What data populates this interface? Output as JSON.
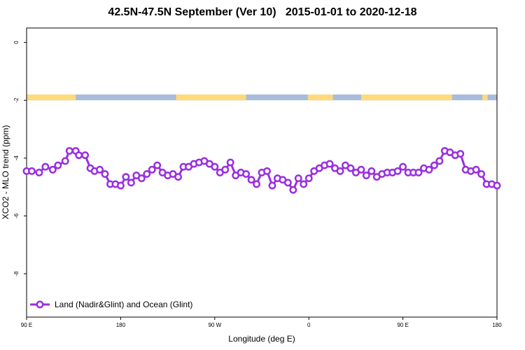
{
  "chart_data": {
    "type": "line",
    "title": "42.5N-47.5N September (Ver 10)   2015-01-01 to 2020-12-18",
    "xlabel": "Longitude (deg E)",
    "ylabel": "XCO2 - MLO trend (ppm)",
    "x_ticks": [
      {
        "value": 90,
        "label": "90 E"
      },
      {
        "value": 180,
        "label": "180"
      },
      {
        "value": 270,
        "label": "90 W"
      },
      {
        "value": 360,
        "label": "0"
      },
      {
        "value": 450,
        "label": "90 E"
      },
      {
        "value": 540,
        "label": "180"
      }
    ],
    "y_ticks": [
      0,
      -2,
      -4,
      -6,
      -8
    ],
    "xlim": [
      90,
      540
    ],
    "ylim": [
      -9.5,
      0.5
    ],
    "grid": false,
    "legend_position": "bottom-left",
    "land_ocean_bar": {
      "y_range": [
        -2.0,
        -1.8
      ],
      "land_color": "#FFD97A",
      "ocean_color": "#A7BCDA",
      "land_segments": [
        [
          90,
          137
        ],
        [
          233,
          300
        ],
        [
          359,
          383
        ],
        [
          410,
          497
        ],
        [
          526,
          531
        ]
      ]
    },
    "series": [
      {
        "name": "Land (Nadir&Glint) and Ocean (Glint)",
        "color": "#9A2FE0",
        "x": [
          90,
          95,
          102,
          108,
          115,
          120,
          127,
          131,
          137,
          140,
          146,
          151,
          155,
          160,
          165,
          170,
          175,
          180,
          185,
          190,
          195,
          200,
          205,
          210,
          215,
          220,
          225,
          230,
          235,
          240,
          245,
          250,
          255,
          260,
          265,
          270,
          275,
          280,
          285,
          290,
          295,
          300,
          305,
          310,
          315,
          320,
          325,
          330,
          335,
          340,
          345,
          350,
          355,
          360,
          365,
          370,
          375,
          380,
          385,
          390,
          395,
          400,
          405,
          410,
          415,
          420,
          425,
          430,
          435,
          440,
          445,
          450,
          455,
          460,
          465,
          470,
          475,
          480,
          485,
          490,
          495,
          500,
          505,
          510,
          515,
          520,
          525,
          530,
          535,
          540
        ],
        "y": [
          -4.45,
          -4.45,
          -4.5,
          -4.3,
          -4.4,
          -4.25,
          -4.1,
          -3.75,
          -3.75,
          -3.9,
          -3.9,
          -4.35,
          -4.45,
          -4.4,
          -4.55,
          -4.9,
          -4.9,
          -4.95,
          -4.65,
          -4.85,
          -4.6,
          -4.7,
          -4.55,
          -4.4,
          -4.25,
          -4.5,
          -4.6,
          -4.55,
          -4.65,
          -4.3,
          -4.3,
          -4.2,
          -4.15,
          -4.1,
          -4.2,
          -4.3,
          -4.5,
          -4.4,
          -4.15,
          -4.6,
          -4.5,
          -4.55,
          -4.75,
          -4.9,
          -4.5,
          -4.45,
          -4.95,
          -4.7,
          -4.75,
          -4.85,
          -5.1,
          -4.7,
          -4.9,
          -4.7,
          -4.45,
          -4.35,
          -4.25,
          -4.2,
          -4.35,
          -4.45,
          -4.25,
          -4.35,
          -4.5,
          -4.4,
          -4.6,
          -4.45,
          -4.65,
          -4.55,
          -4.5,
          -4.5,
          -4.45,
          -4.3,
          -4.5,
          -4.5,
          -4.5,
          -4.35,
          -4.4,
          -4.25,
          -4.1,
          -3.75,
          -3.8,
          -3.9,
          -3.85,
          -4.4,
          -4.45,
          -4.4,
          -4.55,
          -4.9,
          -4.9,
          -4.95
        ]
      }
    ]
  }
}
